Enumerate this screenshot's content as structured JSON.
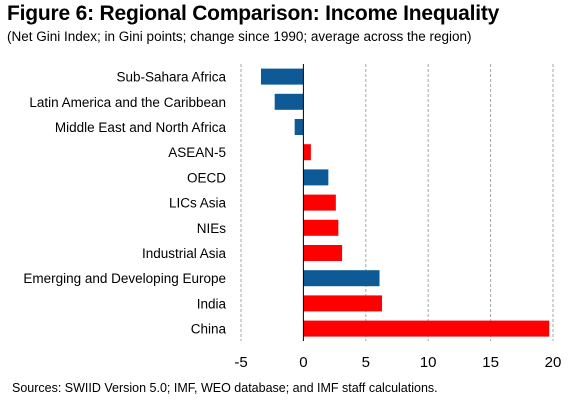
{
  "title": "Figure 6: Regional Comparison: Income Inequality",
  "subtitle": "(Net Gini Index; in Gini points; change since 1990; average across the region)",
  "source": "Sources: SWIID Version 5.0; IMF, WEO database; and IMF staff calculations.",
  "colors": {
    "positive": "#ff0000",
    "negative": "#0d5a96",
    "grid": "#a6a6a6"
  },
  "chart_data": {
    "type": "bar",
    "orientation": "horizontal",
    "categories": [
      "Sub-Sahara Africa",
      "Latin America and the Caribbean",
      "Middle East and North Africa",
      "ASEAN-5",
      "OECD",
      "LICs Asia",
      "NIEs",
      "Industrial Asia",
      "Emerging and Developing Europe",
      "India",
      "China"
    ],
    "values": [
      -3.4,
      -2.3,
      -0.7,
      0.6,
      2.0,
      2.6,
      2.8,
      3.1,
      6.1,
      6.3,
      19.7
    ],
    "bar_colors": [
      "#0d5a96",
      "#0d5a96",
      "#0d5a96",
      "#ff0000",
      "#0d5a96",
      "#ff0000",
      "#ff0000",
      "#ff0000",
      "#0d5a96",
      "#ff0000",
      "#ff0000"
    ],
    "xlim": [
      -5,
      20
    ],
    "xticks": [
      -5,
      0,
      5,
      10,
      15,
      20
    ],
    "grid": "vertical dashed",
    "legend": "none"
  }
}
